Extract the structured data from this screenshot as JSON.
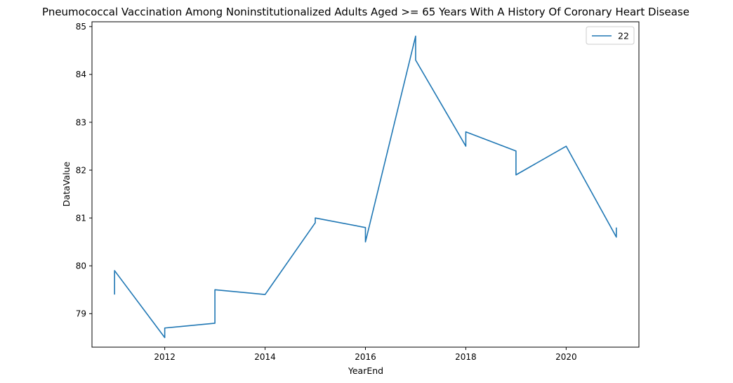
{
  "chart_data": {
    "type": "line",
    "title": "Pneumococcal Vaccination Among Noninstitutionalized Adults Aged >= 65 Years With A History Of Coronary Heart Disease",
    "xlabel": "YearEnd",
    "ylabel": "DataValue",
    "xlim": [
      2010.55,
      2021.45
    ],
    "ylim": [
      78.3,
      85.1
    ],
    "x_ticks": [
      2012,
      2014,
      2016,
      2018,
      2020
    ],
    "y_ticks": [
      79,
      80,
      81,
      82,
      83,
      84,
      85
    ],
    "grid": false,
    "legend": {
      "position": "top-right",
      "entries": [
        "22"
      ]
    },
    "series": [
      {
        "name": "22",
        "color": "#1f77b4",
        "points": [
          [
            2011,
            79.4
          ],
          [
            2011,
            79.9
          ],
          [
            2012,
            78.5
          ],
          [
            2012,
            78.7
          ],
          [
            2013,
            78.8
          ],
          [
            2013,
            79.5
          ],
          [
            2014,
            79.4
          ],
          [
            2015,
            80.9
          ],
          [
            2015,
            81.0
          ],
          [
            2016,
            80.8
          ],
          [
            2016,
            80.5
          ],
          [
            2017,
            84.8
          ],
          [
            2017,
            84.3
          ],
          [
            2018,
            82.5
          ],
          [
            2018,
            82.8
          ],
          [
            2019,
            82.4
          ],
          [
            2019,
            81.9
          ],
          [
            2020,
            82.5
          ],
          [
            2021,
            80.6
          ],
          [
            2021,
            80.8
          ]
        ]
      }
    ]
  }
}
